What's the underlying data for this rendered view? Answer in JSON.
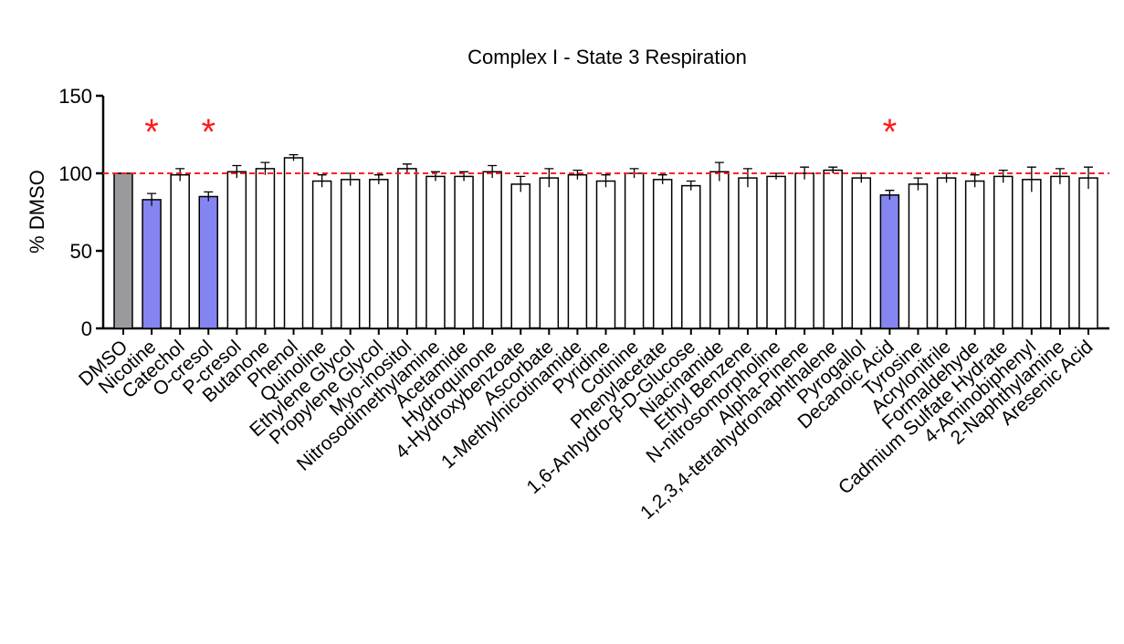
{
  "chart_data": {
    "type": "bar",
    "title": "Complex I - State 3 Respiration",
    "y_label": "% DMSO",
    "categories": [
      "DMSO",
      "Nicotine",
      "Catechol",
      "O-cresol",
      "P-cresol",
      "Butanone",
      "Phenol",
      "Quinoline",
      "Ethylene Glycol",
      "Propylene Glycol",
      "Myo-inositol",
      "Nitrosodimethylamine",
      "Acetamide",
      "Hydroquinone",
      "4-Hydroxybenzoate",
      "Ascorbate",
      "1-Methylnicotinamide",
      "Pyridine",
      "Cotinine",
      "Phenylacetate",
      "1,6-Anhydro-β-D-Glucose",
      "Niacinamide",
      "Ethyl Benzene",
      "N-nitrosomorpholine",
      "Alpha-Pinene",
      "1,2,3,4-tetrahydronaphthalene",
      "Pyrogallol",
      "Decanoic Acid",
      "Tyrosine",
      "Acrylonitrile",
      "Formaldehyde",
      "Cadmium Sulfate Hydrate",
      "4-Aminobiphenyl",
      "2-Naphthylamine",
      "Aresenic Acid"
    ],
    "values": [
      100,
      83,
      99,
      85,
      101,
      103,
      110,
      95,
      96,
      96,
      103,
      98,
      98,
      101,
      93,
      97,
      99,
      95,
      100,
      96,
      92,
      101,
      97,
      98,
      100,
      102,
      97,
      86,
      93,
      97,
      95,
      98,
      96,
      98,
      97
    ],
    "errors": [
      0,
      4,
      4,
      3,
      4,
      4,
      2,
      4,
      4,
      3,
      3,
      3,
      3,
      4,
      5,
      6,
      3,
      4,
      3,
      3,
      3,
      6,
      6,
      2,
      4,
      2,
      3,
      3,
      4,
      3,
      4,
      4,
      8,
      5,
      7
    ],
    "colors": [
      "#9a9a9e",
      "#8585f2",
      "#ffffff",
      "#8585f2",
      "#ffffff",
      "#ffffff",
      "#ffffff",
      "#ffffff",
      "#ffffff",
      "#ffffff",
      "#ffffff",
      "#ffffff",
      "#ffffff",
      "#ffffff",
      "#ffffff",
      "#ffffff",
      "#ffffff",
      "#ffffff",
      "#ffffff",
      "#ffffff",
      "#ffffff",
      "#ffffff",
      "#ffffff",
      "#ffffff",
      "#ffffff",
      "#ffffff",
      "#ffffff",
      "#8585f2",
      "#ffffff",
      "#ffffff",
      "#ffffff",
      "#ffffff",
      "#ffffff",
      "#ffffff",
      "#ffffff"
    ],
    "reference_line": {
      "value": 100,
      "color": "#ff2020"
    },
    "annotations": [
      {
        "text": "*",
        "category": "Nicotine"
      },
      {
        "text": "*",
        "category": "O-cresol"
      },
      {
        "text": "*",
        "category": "Decanoic Acid"
      }
    ],
    "ylim": [
      0,
      150
    ],
    "yticks": [
      0,
      50,
      100,
      150
    ]
  }
}
